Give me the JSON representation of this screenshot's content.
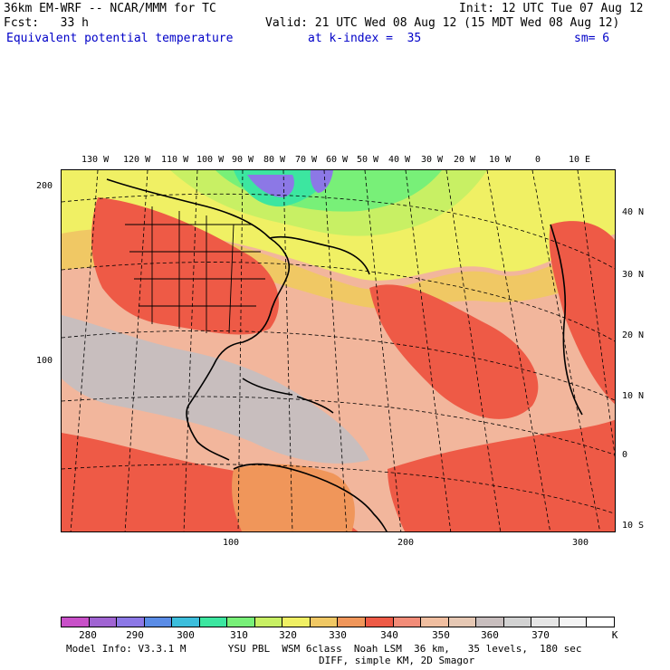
{
  "header": {
    "model": "36km EM-WRF -- NCAR/MMM for TC",
    "init": "Init: 12 UTC Tue 07 Aug 12",
    "fcst": "Fcst:   33 h",
    "valid": "Valid: 21 UTC Wed 08 Aug 12 (15 MDT Wed 08 Aug 12)",
    "field": "Equivalent potential temperature",
    "kindex": "at k-index =  35",
    "sm": "sm= 6"
  },
  "map": {
    "top_lon_labels": [
      "130 W",
      "120 W",
      "110 W",
      "100 W",
      "90 W",
      "80 W",
      "70 W",
      "60 W",
      "50 W",
      "40 W",
      "30 W",
      "20 W",
      "10 W",
      "0",
      "10 E"
    ],
    "right_lat_labels": [
      "40 N",
      "30 N",
      "20 N",
      "10 N",
      "0",
      "10 S"
    ],
    "left_grid_labels": [
      "200",
      "100"
    ],
    "bottom_grid_labels": [
      "100",
      "200",
      "300"
    ]
  },
  "colorbar": {
    "units": "K",
    "tick_labels": [
      "280",
      "290",
      "300",
      "310",
      "320",
      "330",
      "340",
      "350",
      "360",
      "370"
    ],
    "colors": [
      "#c850c8",
      "#a064d2",
      "#8c78e6",
      "#5a8ce6",
      "#3cbedc",
      "#3ce6a0",
      "#78f078",
      "#c8f064",
      "#f0f064",
      "#f0c864",
      "#f0965a",
      "#ee5a46",
      "#f28c78",
      "#f0bea0",
      "#e6c8b4",
      "#c8bebe",
      "#d2d2d2",
      "#e6e6e6",
      "#f4f4f4",
      "#ffffff"
    ]
  },
  "footer": {
    "line1": "Model Info: V3.3.1 M       YSU PBL  WSM 6class  Noah LSM  36 km,   35 levels,  180 sec",
    "line2": "DIFF, simple KM, 2D Smagor"
  }
}
